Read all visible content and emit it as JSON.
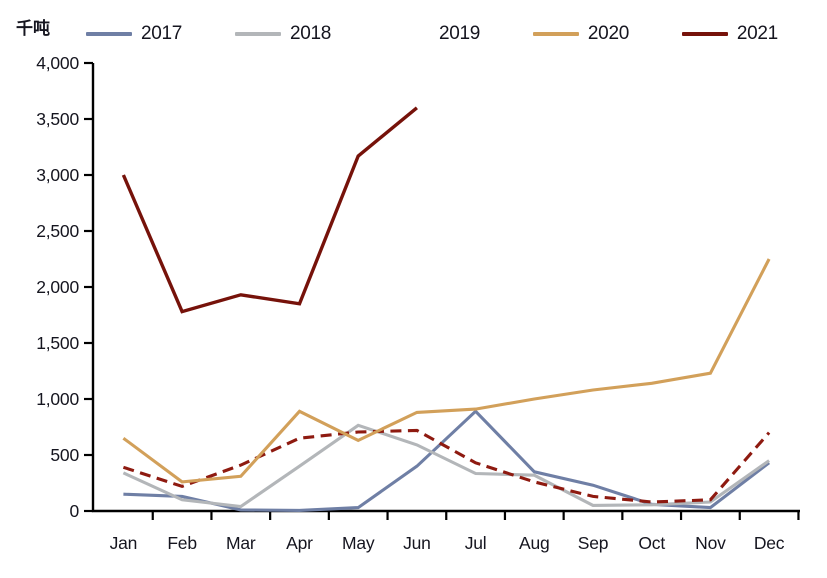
{
  "unit_label": "千吨",
  "chart_data": {
    "type": "line",
    "title": "",
    "xlabel": "",
    "ylabel": "千吨",
    "categories": [
      "Jan",
      "Feb",
      "Mar",
      "Apr",
      "May",
      "Jun",
      "Jul",
      "Aug",
      "Sep",
      "Oct",
      "Nov",
      "Dec"
    ],
    "series": [
      {
        "name": "2017",
        "color": "#6f7fa5",
        "style": "solid",
        "values": [
          150,
          130,
          10,
          5,
          30,
          400,
          890,
          350,
          230,
          60,
          30,
          430
        ]
      },
      {
        "name": "2018",
        "color": "#b3b6b9",
        "style": "solid",
        "values": [
          340,
          100,
          40,
          400,
          765,
          590,
          335,
          320,
          50,
          55,
          80,
          450
        ]
      },
      {
        "name": "2019",
        "color": "#8e1a10",
        "style": "dashed",
        "values": [
          390,
          220,
          410,
          650,
          705,
          720,
          430,
          260,
          130,
          80,
          100,
          700
        ]
      },
      {
        "name": "2020",
        "color": "#d2a05a",
        "style": "solid",
        "values": [
          650,
          260,
          310,
          890,
          630,
          880,
          910,
          1000,
          1080,
          1140,
          1230,
          2250
        ]
      },
      {
        "name": "2021",
        "color": "#76120a",
        "style": "solid",
        "values": [
          3000,
          1780,
          1930,
          1850,
          3170,
          3600,
          null,
          null,
          null,
          null,
          null,
          null
        ]
      }
    ],
    "ylim": [
      0,
      4000
    ],
    "y_tick_step": 500,
    "y_tick_labels": [
      "0",
      "500",
      "1,000",
      "1,500",
      "2,000",
      "2,500",
      "3,000",
      "3,500",
      "4,000"
    ],
    "grid": false,
    "legend_position": "top"
  },
  "colors": {
    "axis": "#000000",
    "text": "#15151f",
    "background": "#ffffff"
  }
}
